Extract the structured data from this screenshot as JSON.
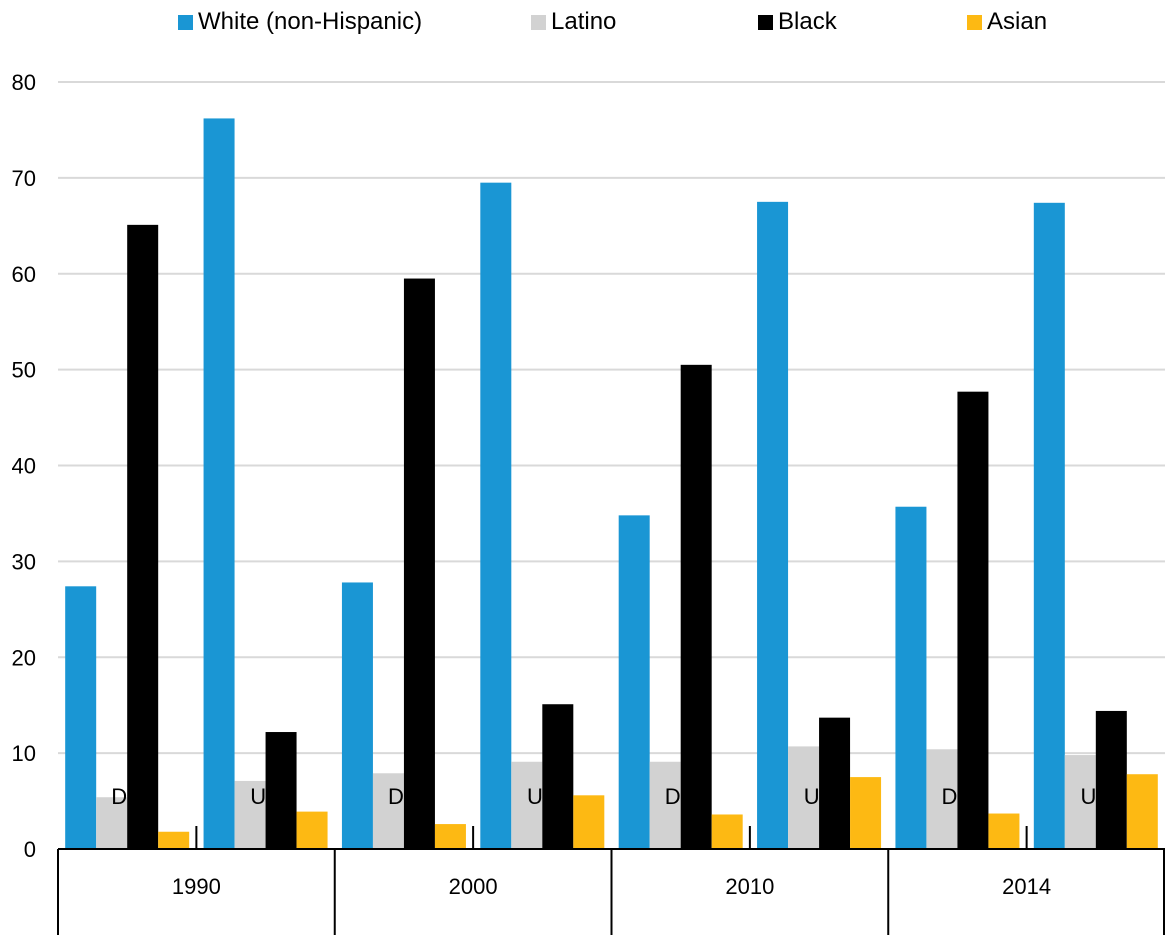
{
  "chart_data": {
    "type": "bar",
    "ylim": [
      0,
      80
    ],
    "yticks": [
      0,
      10,
      20,
      30,
      40,
      50,
      60,
      70,
      80
    ],
    "grid": true,
    "legend_position": "top",
    "groups": [
      {
        "label": "1990",
        "categories": [
          "DC",
          "US"
        ]
      },
      {
        "label": "2000",
        "categories": [
          "DC",
          "US"
        ]
      },
      {
        "label": "2010",
        "categories": [
          "DC",
          "US"
        ]
      },
      {
        "label": "2014",
        "categories": [
          "DC",
          "US"
        ]
      }
    ],
    "series": [
      {
        "name": "White (non-Hispanic)",
        "color": "#1a96d4",
        "values": [
          27.4,
          76.2,
          27.8,
          69.5,
          34.8,
          67.5,
          35.7,
          67.4
        ]
      },
      {
        "name": "Latino",
        "color": "#d2d2d2",
        "values": [
          5.4,
          7.1,
          7.9,
          9.1,
          9.1,
          10.7,
          10.4,
          9.8
        ]
      },
      {
        "name": "Black",
        "color": "#000000",
        "values": [
          65.1,
          12.2,
          59.5,
          15.1,
          50.5,
          13.7,
          47.7,
          14.4
        ]
      },
      {
        "name": "Asian",
        "color": "#fdb913",
        "values": [
          1.8,
          3.9,
          2.6,
          5.6,
          3.6,
          7.5,
          3.7,
          7.8
        ]
      }
    ]
  }
}
